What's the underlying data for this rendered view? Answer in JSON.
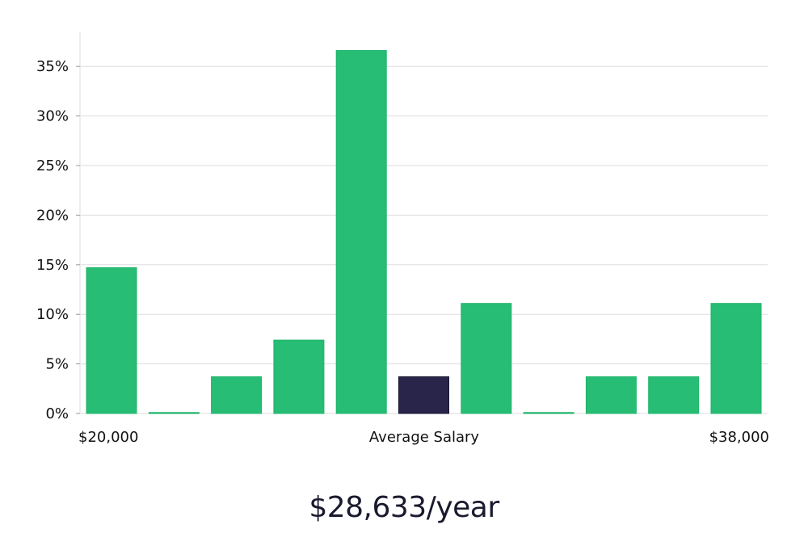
{
  "chart_data": {
    "type": "bar",
    "values": [
      14.7,
      0.1,
      3.7,
      7.4,
      36.6,
      3.7,
      11.1,
      0.1,
      3.7,
      3.7,
      11.1
    ],
    "highlight_index": 5,
    "ylim": [
      0,
      38
    ],
    "yticks": [
      0,
      5,
      10,
      15,
      20,
      25,
      30,
      35
    ],
    "ytick_labels": [
      "0%",
      "5%",
      "10%",
      "15%",
      "20%",
      "25%",
      "30%",
      "35%"
    ],
    "x_labels": {
      "left": "$20,000",
      "center": "Average Salary",
      "right": "$38,000"
    },
    "grid": true,
    "colors": {
      "bar": "#27bd74",
      "bar_border": "#1fb36a",
      "highlight": "#28244a",
      "highlight_border": "#1a1733"
    }
  },
  "salary_display": "$28,633/year"
}
